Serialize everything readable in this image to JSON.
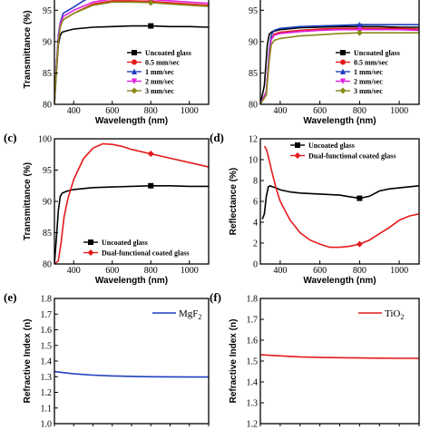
{
  "chart_data": [
    {
      "id": "a",
      "type": "line",
      "panel_label": "",
      "xlabel": "Wavelength (nm)",
      "ylabel": "Transmittance (%)",
      "xlim": [
        300,
        1100
      ],
      "ylim": [
        80,
        97.5
      ],
      "xticks": [
        400,
        600,
        800,
        1000
      ],
      "yticks": [
        80,
        85,
        90,
        95
      ],
      "legend_position": "bottom-right",
      "series": [
        {
          "name": "Uncoated glass",
          "color": "#000000",
          "marker": "square",
          "x": [
            300,
            310,
            320,
            330,
            340,
            360,
            400,
            500,
            600,
            700,
            800,
            900,
            1000,
            1100
          ],
          "y": [
            80,
            85,
            89.5,
            91,
            91.5,
            91.7,
            92,
            92.3,
            92.4,
            92.5,
            92.5,
            92.4,
            92.4,
            92.3
          ]
        },
        {
          "name": "0.5 mm/sec",
          "color": "#e41a1c",
          "marker": "circle",
          "x": [
            300,
            310,
            320,
            330,
            345,
            400,
            500,
            600,
            700,
            800,
            900,
            1000,
            1100
          ],
          "y": [
            80,
            86,
            90,
            92.5,
            93.5,
            94.5,
            96,
            96.5,
            96.5,
            96.4,
            96.2,
            96.0,
            95.8
          ]
        },
        {
          "name": "1 mm/sec",
          "color": "#1f3fbf",
          "marker": "triangle",
          "x": [
            300,
            310,
            320,
            330,
            345,
            400,
            450,
            500,
            600,
            700,
            800,
            900,
            1000,
            1100
          ],
          "y": [
            80,
            86,
            91,
            93,
            94.5,
            95.5,
            96.5,
            97.2,
            97.5,
            97.6,
            97.5,
            97.3,
            97.0,
            96.8
          ]
        },
        {
          "name": "2 mm/sec",
          "color": "#e020e0",
          "marker": "triangle-down",
          "x": [
            300,
            310,
            320,
            330,
            345,
            400,
            500,
            600,
            700,
            800,
            900,
            1000,
            1100
          ],
          "y": [
            80,
            86,
            90.5,
            92.8,
            94,
            95,
            96.3,
            96.8,
            96.8,
            96.7,
            96.5,
            96.3,
            96.1
          ]
        },
        {
          "name": "3 mm/sec",
          "color": "#8a8a1a",
          "marker": "diamond",
          "x": [
            300,
            310,
            320,
            330,
            345,
            400,
            500,
            600,
            700,
            800,
            900,
            1000,
            1100
          ],
          "y": [
            80,
            85.5,
            90,
            92.3,
            93.5,
            94.5,
            95.8,
            96.3,
            96.3,
            96.2,
            96.0,
            95.8,
            95.6
          ]
        }
      ]
    },
    {
      "id": "b",
      "type": "line",
      "panel_label": "",
      "xlabel": "Wavelength (nm)",
      "ylabel": "",
      "xlim": [
        300,
        1100
      ],
      "ylim": [
        80,
        97.5
      ],
      "xticks": [
        400,
        600,
        800,
        1000
      ],
      "yticks": [
        80,
        85,
        90,
        95
      ],
      "legend_position": "bottom-right",
      "series": [
        {
          "name": "Uncoated glass",
          "color": "#000000",
          "marker": "square",
          "x": [
            300,
            320,
            335,
            345,
            360,
            400,
            500,
            600,
            700,
            800,
            900,
            1000,
            1100
          ],
          "y": [
            80,
            83,
            89.5,
            91.2,
            91.6,
            91.9,
            92.2,
            92.3,
            92.4,
            92.4,
            92.4,
            92.3,
            92.3
          ]
        },
        {
          "name": "0.5 mm/sec",
          "color": "#e41a1c",
          "marker": "circle",
          "x": [
            300,
            330,
            345,
            355,
            370,
            400,
            500,
            600,
            700,
            800,
            900,
            1000,
            1100
          ],
          "y": [
            80,
            82,
            88,
            90.5,
            91.2,
            91.5,
            91.8,
            92.0,
            92.1,
            92.1,
            92.1,
            92.1,
            92.0
          ]
        },
        {
          "name": "1 mm/sec",
          "color": "#1f3fbf",
          "marker": "triangle",
          "x": [
            300,
            330,
            345,
            355,
            370,
            400,
            500,
            600,
            700,
            800,
            900,
            1000,
            1100
          ],
          "y": [
            80,
            82,
            88.5,
            91,
            91.8,
            92.1,
            92.4,
            92.5,
            92.6,
            92.7,
            92.7,
            92.7,
            92.7
          ]
        },
        {
          "name": "2 mm/sec",
          "color": "#e020e0",
          "marker": "triangle-down",
          "x": [
            300,
            330,
            345,
            355,
            370,
            400,
            500,
            600,
            700,
            800,
            900,
            1000,
            1100
          ],
          "y": [
            80,
            82,
            88,
            90.3,
            91.0,
            91.3,
            91.6,
            91.8,
            91.9,
            91.9,
            91.9,
            91.9,
            91.8
          ]
        },
        {
          "name": "3 mm/sec",
          "color": "#8a8a1a",
          "marker": "diamond",
          "x": [
            300,
            330,
            345,
            355,
            370,
            400,
            500,
            600,
            700,
            800,
            900,
            1000,
            1100
          ],
          "y": [
            80,
            81.5,
            87,
            89.5,
            90.2,
            90.5,
            90.9,
            91.1,
            91.3,
            91.4,
            91.4,
            91.4,
            91.4
          ]
        }
      ]
    },
    {
      "id": "c",
      "type": "line",
      "panel_label": "(c)",
      "xlabel": "Wavelength (nm)",
      "ylabel": "Transmittance (%)",
      "xlim": [
        300,
        1100
      ],
      "ylim": [
        80,
        100
      ],
      "xticks": [
        400,
        600,
        800,
        1000
      ],
      "yticks": [
        80,
        85,
        90,
        95,
        100
      ],
      "legend_position": "bottom-right",
      "series": [
        {
          "name": "Uncoated glass",
          "color": "#000000",
          "marker": "square",
          "x": [
            300,
            310,
            320,
            330,
            340,
            360,
            400,
            500,
            600,
            700,
            800,
            900,
            1000,
            1100
          ],
          "y": [
            80,
            84,
            88.5,
            90.8,
            91.3,
            91.6,
            91.9,
            92.2,
            92.3,
            92.4,
            92.5,
            92.5,
            92.4,
            92.4
          ]
        },
        {
          "name": "Dual-functional coated glass",
          "color": "#e41a1c",
          "marker": "diamond",
          "x": [
            300,
            320,
            335,
            350,
            370,
            400,
            450,
            500,
            550,
            600,
            650,
            700,
            800,
            900,
            1000,
            1100
          ],
          "y": [
            80,
            80.5,
            83.5,
            87.5,
            90.5,
            93.5,
            96.8,
            98.5,
            99.2,
            99.1,
            98.8,
            98.3,
            97.6,
            96.9,
            96.2,
            95.5
          ]
        }
      ]
    },
    {
      "id": "d",
      "type": "line",
      "panel_label": "(d)",
      "xlabel": "Wavelength (nm)",
      "ylabel": "Reflectance (%)",
      "xlim": [
        300,
        1100
      ],
      "ylim": [
        0,
        12
      ],
      "xticks": [
        400,
        600,
        800,
        1000
      ],
      "yticks": [
        0,
        2,
        4,
        6,
        8,
        10,
        12
      ],
      "legend_position": "top-right",
      "series": [
        {
          "name": "Uncoated glass",
          "color": "#000000",
          "marker": "square",
          "x": [
            310,
            320,
            330,
            340,
            350,
            360,
            380,
            400,
            450,
            500,
            600,
            700,
            800,
            850,
            900,
            950,
            1000,
            1050,
            1100
          ],
          "y": [
            4.3,
            4.8,
            6.5,
            7.4,
            7.5,
            7.4,
            7.3,
            7.1,
            6.9,
            6.8,
            6.7,
            6.6,
            6.3,
            6.5,
            7.0,
            7.2,
            7.3,
            7.4,
            7.5
          ]
        },
        {
          "name": "Dual-functional coated glass",
          "color": "#e41a1c",
          "marker": "diamond",
          "x": [
            320,
            330,
            340,
            360,
            380,
            400,
            450,
            500,
            550,
            600,
            650,
            700,
            750,
            800,
            850,
            900,
            950,
            1000,
            1050,
            1100
          ],
          "y": [
            11.3,
            11.0,
            10.3,
            8.7,
            7.2,
            6.0,
            4.2,
            3.0,
            2.3,
            1.9,
            1.6,
            1.6,
            1.7,
            1.9,
            2.3,
            2.9,
            3.5,
            4.2,
            4.6,
            4.8
          ]
        }
      ]
    },
    {
      "id": "e",
      "type": "line",
      "panel_label": "(e)",
      "xlabel": "",
      "ylabel": "Refractive Index (n)",
      "xlim": [
        300,
        1100
      ],
      "ylim": [
        1.0,
        1.8
      ],
      "xticks": [],
      "yticks": [
        1.0,
        1.1,
        1.2,
        1.3,
        1.4,
        1.5,
        1.6,
        1.7,
        1.8
      ],
      "legend_position": "top-right",
      "legend_sub": "2",
      "series": [
        {
          "name": "MgF",
          "color": "#1f3fbf",
          "marker": "",
          "x": [
            300,
            400,
            500,
            600,
            700,
            800,
            900,
            1000,
            1100
          ],
          "y": [
            1.333,
            1.318,
            1.31,
            1.305,
            1.302,
            1.3,
            1.299,
            1.298,
            1.298
          ]
        }
      ]
    },
    {
      "id": "f",
      "type": "line",
      "panel_label": "(f)",
      "xlabel": "",
      "ylabel": "Refractive Index (n)",
      "xlim": [
        300,
        1100
      ],
      "ylim": [
        1.2,
        1.8
      ],
      "xticks": [],
      "yticks": [
        1.2,
        1.3,
        1.4,
        1.5,
        1.6,
        1.7,
        1.8
      ],
      "legend_position": "top-right",
      "legend_sub": "2",
      "series": [
        {
          "name": "TiO",
          "color": "#e41a1c",
          "marker": "",
          "x": [
            300,
            400,
            500,
            600,
            700,
            800,
            900,
            1000,
            1100
          ],
          "y": [
            1.53,
            1.525,
            1.52,
            1.518,
            1.516,
            1.515,
            1.514,
            1.513,
            1.513
          ]
        }
      ]
    }
  ]
}
